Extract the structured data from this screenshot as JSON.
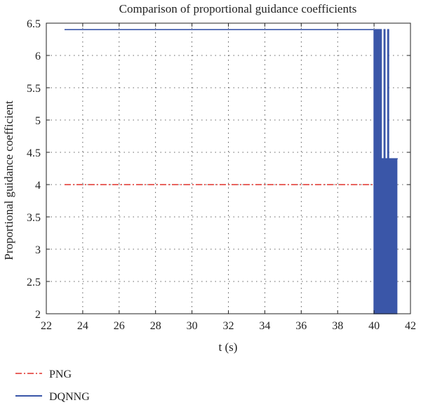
{
  "chart_data": {
    "type": "line",
    "title": "Comparison of proportional guidance coefficients",
    "xlabel": "t (s)",
    "ylabel": "Proportional guidance coefficient",
    "xlim": [
      22,
      42
    ],
    "ylim": [
      2,
      6.5
    ],
    "xticks": [
      22,
      24,
      26,
      28,
      30,
      32,
      34,
      36,
      38,
      40,
      42
    ],
    "yticks": [
      2,
      2.5,
      3,
      3.5,
      4,
      4.5,
      5,
      5.5,
      6,
      6.5
    ],
    "xtick_labels": [
      "22",
      "24",
      "26",
      "28",
      "30",
      "32",
      "34",
      "36",
      "38",
      "40",
      "42"
    ],
    "ytick_labels": [
      "2",
      "2.5",
      "3",
      "3.5",
      "4",
      "4.5",
      "5",
      "5.5",
      "6",
      "6.5"
    ],
    "grid": true,
    "legend_placement": "bottom-left, outside plot",
    "series": [
      {
        "name": "PNG",
        "color": "#e0302a",
        "style": "dash-dot",
        "x": [
          23,
          41.3
        ],
        "y": [
          4,
          4
        ]
      },
      {
        "name": "DQNNG",
        "color": "#3a56a8",
        "style": "solid",
        "x": [
          23,
          40.0,
          40.0,
          40.05,
          40.05,
          40.1,
          40.1,
          40.15,
          40.15,
          40.2,
          40.2,
          40.25,
          40.25,
          40.3,
          40.3,
          40.35,
          40.35,
          40.4,
          40.4,
          40.45,
          40.45,
          40.5,
          40.5,
          40.55,
          40.55,
          40.6,
          40.6,
          40.65,
          40.65,
          40.7,
          40.7,
          40.75,
          40.75,
          40.8,
          40.8,
          40.85,
          40.85,
          40.9,
          40.9,
          40.95,
          40.95,
          41.0,
          41.0,
          41.05,
          41.05,
          41.1,
          41.1,
          41.15,
          41.15,
          41.2,
          41.2,
          41.25,
          41.25,
          41.3
        ],
        "y": [
          6.4,
          6.4,
          2,
          2,
          6.4,
          6.4,
          2,
          2,
          6.4,
          6.4,
          2,
          2,
          6.4,
          6.4,
          2,
          2,
          6.4,
          6.4,
          2,
          2,
          4.4,
          4.4,
          2,
          2,
          6.4,
          6.4,
          2,
          2,
          4.4,
          4.4,
          2,
          2,
          6.4,
          6.4,
          2,
          2,
          4.4,
          4.4,
          2,
          2,
          4.4,
          4.4,
          2,
          2,
          4.4,
          4.4,
          2,
          2,
          4.4,
          4.4,
          2,
          2,
          4.4,
          4.4
        ]
      }
    ]
  }
}
